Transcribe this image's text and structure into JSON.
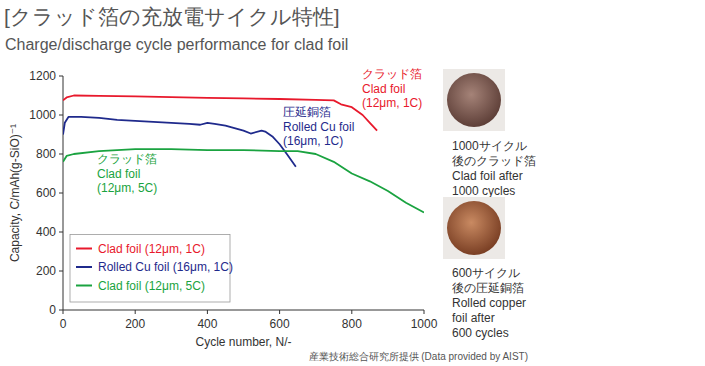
{
  "chart_data": {
    "type": "line",
    "title": "[クラッド箔の充放電サイクル特性]",
    "subtitle": "Charge/discharge cycle performance for clad foil",
    "x_label": "Cycle number, N/-",
    "y_label": "Capacity, C/mAh(g-SiO)⁻¹",
    "xlim": [
      0,
      1000
    ],
    "ylim": [
      0,
      1200
    ],
    "xticks": [
      0,
      200,
      400,
      600,
      800,
      1000
    ],
    "yticks": [
      0,
      200,
      400,
      600,
      800,
      1000,
      1200
    ],
    "grid": false,
    "legend": "lower left",
    "series": [
      {
        "name": "Clad foil (12μm, 1C)",
        "color": "#e8192c",
        "x": [
          0,
          10,
          30,
          100,
          200,
          300,
          400,
          500,
          600,
          700,
          750,
          770,
          800,
          830,
          850,
          870
        ],
        "values": [
          1075,
          1090,
          1100,
          1098,
          1095,
          1092,
          1088,
          1085,
          1082,
          1078,
          1075,
          1055,
          1040,
          1000,
          960,
          920
        ]
      },
      {
        "name": "Rolled Cu foil (16μm, 1C)",
        "color": "#1f2a8c",
        "x": [
          0,
          5,
          15,
          50,
          100,
          150,
          200,
          250,
          300,
          350,
          380,
          400,
          420,
          450,
          480,
          500,
          520,
          550,
          560,
          580,
          600,
          620,
          645
        ],
        "values": [
          900,
          960,
          990,
          990,
          985,
          975,
          970,
          965,
          960,
          955,
          950,
          960,
          955,
          945,
          930,
          920,
          905,
          920,
          915,
          890,
          850,
          800,
          735
        ]
      },
      {
        "name": "Clad foil (12μm, 5C)",
        "color": "#1aa340",
        "x": [
          0,
          10,
          30,
          100,
          200,
          300,
          400,
          500,
          600,
          650,
          700,
          750,
          800,
          850,
          900,
          950,
          1000
        ],
        "values": [
          760,
          790,
          800,
          815,
          825,
          825,
          820,
          820,
          815,
          815,
          800,
          760,
          700,
          660,
          610,
          550,
          500
        ]
      }
    ],
    "annotations": [
      {
        "lines": [
          "クラッド箔",
          "Clad foil",
          "(12μm, 1C)"
        ]
      },
      {
        "lines": [
          "圧延銅箔",
          "Rolled Cu foil",
          "(16μm, 1C)"
        ]
      },
      {
        "lines": [
          "クラッド箔",
          "Clad foil",
          "(12μm, 5C)"
        ]
      }
    ],
    "source": "産業技術総合研究所提供 (Data provided by AIST)"
  },
  "photos": [
    {
      "caption": [
        "1000サイクル",
        "後のクラッド箔",
        "Clad foil after",
        "1000 cycles"
      ]
    },
    {
      "caption": [
        "600サイクル",
        "後の圧延銅箔",
        "Rolled copper",
        "foil after",
        "600 cycles"
      ]
    }
  ]
}
